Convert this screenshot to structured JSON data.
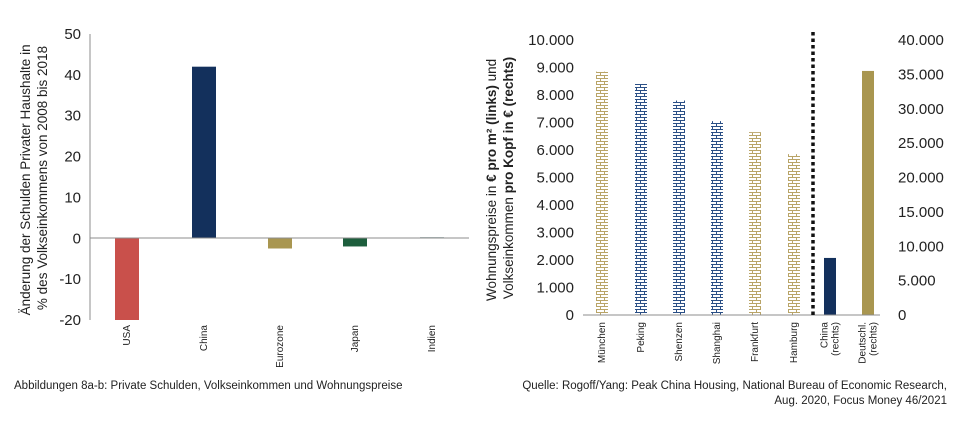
{
  "chart_data": [
    {
      "type": "bar",
      "ylabel_lines": [
        "Änderung der Schulden Privater Haushalte in",
        "% des Volkseinkommens von 2008 bis 2018"
      ],
      "ylim": [
        -20,
        50
      ],
      "yticks": [
        -20,
        -10,
        0,
        10,
        20,
        30,
        40,
        50
      ],
      "ytick_labels": [
        "-20",
        "-10",
        "0",
        "10",
        "20",
        "30",
        "40",
        "50"
      ],
      "categories": [
        "USA",
        "China",
        "Eurozone",
        "Japan",
        "Indien"
      ],
      "values": [
        -20,
        42,
        -2.5,
        -2,
        0.3
      ],
      "colors": [
        "#c9504b",
        "#13305c",
        "#a99650",
        "#1d5e3d",
        "#a9bdbd"
      ],
      "grid": false
    },
    {
      "type": "bar",
      "ylabel_line1_parts": [
        "Wohnungspreise in ",
        "€ pro m² (links)",
        " und"
      ],
      "ylabel_line2_parts": [
        "Volkseinkommen ",
        "pro Kopf in € (rechts)"
      ],
      "ylim_left": [
        0,
        10000
      ],
      "ylim_right": [
        0,
        40000
      ],
      "yticks_left_labels": [
        "0",
        "1.000",
        "2.000",
        "3.000",
        "4.000",
        "5.000",
        "6.000",
        "7.000",
        "8.000",
        "9.000",
        "10.000"
      ],
      "yticks_right_labels": [
        "0",
        "5.000",
        "10.000",
        "15.000",
        "20.000",
        "25.000",
        "30.000",
        "35.000",
        "40.000"
      ],
      "categories": [
        "München",
        "Peking",
        "Shenzen",
        "Shanghai",
        "Frankfurt",
        "Hamburg",
        "China (rechts)",
        "Deutschl. (rechts)"
      ],
      "category_lines": [
        [
          "München"
        ],
        [
          "Peking"
        ],
        [
          "Shenzen"
        ],
        [
          "Shanghai"
        ],
        [
          "Frankfurt"
        ],
        [
          "Hamburg"
        ],
        [
          "China",
          "(rechts)"
        ],
        [
          "Deutschl.",
          "(rechts)"
        ]
      ],
      "series": [
        {
          "axis": "left",
          "values": [
            8850,
            8400,
            7800,
            7050,
            6650,
            5850,
            null,
            null
          ],
          "pattern": [
            "brick-gold",
            "brick-blue",
            "brick-blue",
            "brick-blue",
            "brick-gold",
            "brick-gold",
            null,
            null
          ]
        },
        {
          "axis": "right",
          "values": [
            null,
            null,
            null,
            null,
            null,
            null,
            8300,
            35500
          ],
          "colors": [
            null,
            null,
            null,
            null,
            null,
            null,
            "#13305c",
            "#a99650"
          ]
        }
      ],
      "separator": "dotted vertical line between Hamburg and China (rechts)",
      "grid": false
    }
  ],
  "captions": {
    "left": "Abbildungen 8a-b: Private Schulden, Volkseinkommen und Wohnungspreise",
    "right_line1": "Quelle: Rogoff/Yang: Peak China Housing, National Bureau of Economic Research,",
    "right_line2": "Aug. 2020, Focus Money 46/2021"
  }
}
